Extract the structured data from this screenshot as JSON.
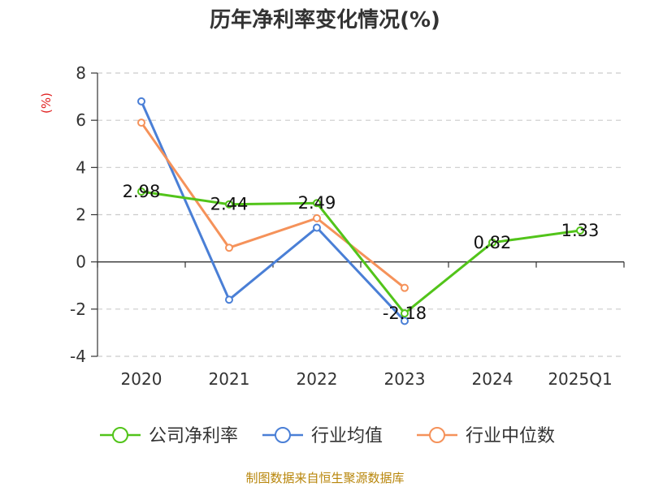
{
  "title": "历年净利率变化情况(%)",
  "unit_label": "(%)",
  "source": "制图数据来自恒生聚源数据库",
  "chart_data": {
    "type": "line",
    "title": "历年净利率变化情况(%)",
    "ylabel": "(%)",
    "categories": [
      "2020",
      "2021",
      "2022",
      "2023",
      "2024",
      "2025Q1"
    ],
    "ylim": [
      -4,
      8
    ],
    "yticks": [
      -4,
      -2,
      0,
      2,
      4,
      6,
      8
    ],
    "grid": true,
    "legend_position": "bottom",
    "series": [
      {
        "name": "公司净利率",
        "color": "#52c41a",
        "values": [
          2.98,
          2.44,
          2.49,
          -2.18,
          0.82,
          1.33
        ],
        "labels": [
          "2.98",
          "2.44",
          "2.49",
          "-2.18",
          "0.82",
          "1.33"
        ]
      },
      {
        "name": "行业均值",
        "color": "#4a7fd6",
        "values": [
          6.8,
          -1.6,
          1.45,
          -2.5,
          null,
          null
        ]
      },
      {
        "name": "行业中位数",
        "color": "#f5925a",
        "values": [
          5.9,
          0.6,
          1.85,
          -1.1,
          null,
          null
        ]
      }
    ]
  }
}
